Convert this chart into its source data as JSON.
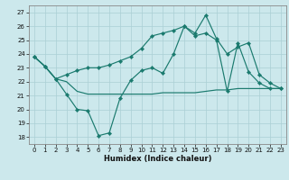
{
  "title": "",
  "xlabel": "Humidex (Indice chaleur)",
  "bg_color": "#cce8ec",
  "grid_color": "#aacfd4",
  "line_color": "#1a7a6e",
  "ylim": [
    17.5,
    27.5
  ],
  "xlim": [
    -0.5,
    23.5
  ],
  "yticks": [
    18,
    19,
    20,
    21,
    22,
    23,
    24,
    25,
    26,
    27
  ],
  "xticks": [
    0,
    1,
    2,
    3,
    4,
    5,
    6,
    7,
    8,
    9,
    10,
    11,
    12,
    13,
    14,
    15,
    16,
    17,
    18,
    19,
    20,
    21,
    22,
    23
  ],
  "line1_x": [
    0,
    1,
    2,
    3,
    4,
    5,
    6,
    7,
    8,
    9,
    10,
    11,
    12,
    13,
    14,
    15,
    16,
    17,
    18,
    19,
    20,
    21,
    22,
    23
  ],
  "line1_y": [
    23.8,
    23.1,
    22.2,
    21.1,
    20.0,
    19.9,
    18.1,
    18.3,
    20.8,
    22.1,
    22.8,
    23.0,
    22.6,
    24.0,
    26.0,
    25.3,
    25.5,
    25.0,
    21.3,
    24.8,
    22.7,
    21.9,
    21.5,
    21.5
  ],
  "line2_x": [
    0,
    1,
    2,
    3,
    4,
    5,
    6,
    7,
    8,
    9,
    10,
    11,
    12,
    13,
    14,
    15,
    16,
    17,
    18,
    19,
    20,
    21,
    22,
    23
  ],
  "line2_y": [
    23.8,
    23.1,
    22.2,
    22.0,
    21.3,
    21.1,
    21.1,
    21.1,
    21.1,
    21.1,
    21.1,
    21.1,
    21.2,
    21.2,
    21.2,
    21.2,
    21.3,
    21.4,
    21.4,
    21.5,
    21.5,
    21.5,
    21.5,
    21.5
  ],
  "line3_x": [
    0,
    1,
    2,
    3,
    4,
    5,
    6,
    7,
    8,
    9,
    10,
    11,
    12,
    13,
    14,
    15,
    16,
    17,
    18,
    19,
    20,
    21,
    22,
    23
  ],
  "line3_y": [
    23.8,
    23.1,
    22.2,
    22.5,
    22.8,
    23.0,
    23.0,
    23.2,
    23.5,
    23.8,
    24.4,
    25.3,
    25.5,
    25.7,
    26.0,
    25.5,
    26.8,
    25.1,
    24.0,
    24.5,
    24.8,
    22.5,
    21.9,
    21.5
  ],
  "xlabel_fontsize": 6,
  "tick_fontsize": 5
}
